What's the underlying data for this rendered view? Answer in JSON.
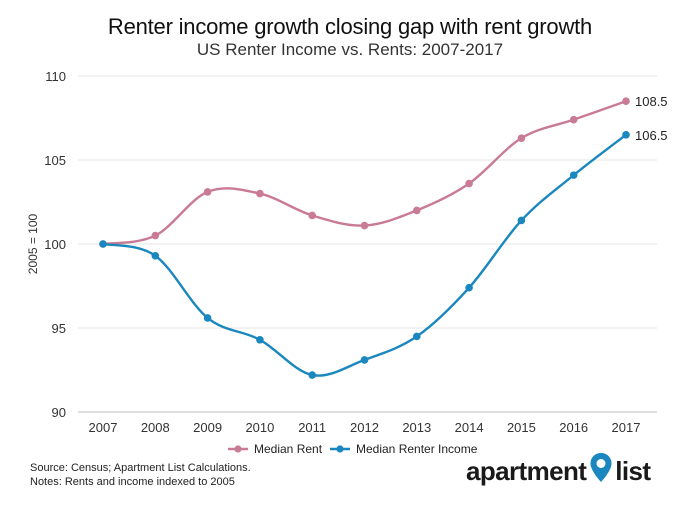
{
  "chart_data": {
    "type": "line",
    "title": "Renter income growth closing gap with rent growth",
    "subtitle": "US Renter Income vs. Rents: 2007-2017",
    "xlabel": "",
    "ylabel": "2005 = 100",
    "ylim": [
      90,
      110
    ],
    "yticks": [
      90,
      95,
      100,
      105,
      110
    ],
    "categories": [
      "2007",
      "2008",
      "2009",
      "2010",
      "2011",
      "2012",
      "2013",
      "2014",
      "2015",
      "2016",
      "2017"
    ],
    "grid": true,
    "legend_position": "bottom",
    "series": [
      {
        "name": "Median Rent",
        "color": "#c97a94",
        "values": [
          100.0,
          100.5,
          103.1,
          103.0,
          101.7,
          101.1,
          102.0,
          103.6,
          106.3,
          107.4,
          108.5
        ],
        "end_label": "108.5"
      },
      {
        "name": "Median Renter Income",
        "color": "#1a87be",
        "values": [
          100.0,
          99.3,
          95.6,
          94.3,
          92.2,
          93.1,
          94.5,
          97.4,
          101.4,
          104.1,
          106.5
        ],
        "end_label": "106.5"
      }
    ]
  },
  "footer": {
    "source": "Source: Census; Apartment List Calculations.",
    "notes": "Notes: Rents and income indexed to 2005"
  },
  "logo": {
    "part1": "apartment",
    "part2": "list",
    "pin_color": "#1a87be"
  }
}
